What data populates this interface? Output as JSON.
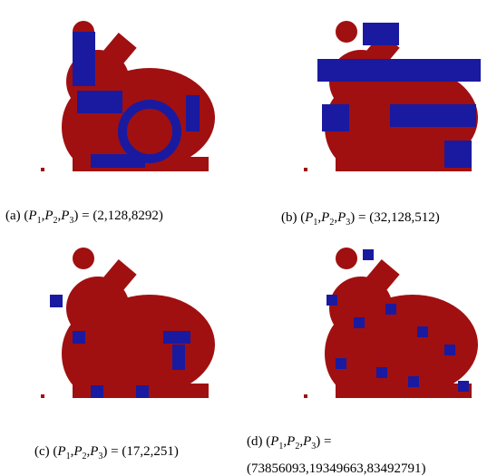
{
  "notation": {
    "open": "(",
    "symbol": "P",
    "subscripts": [
      "1",
      "2",
      "3"
    ],
    "separator": ",",
    "close": ")",
    "equals": "="
  },
  "panels": [
    {
      "label": "(a)",
      "values": "(2,128,8292)"
    },
    {
      "label": "(b)",
      "values": "(32,128,512)"
    },
    {
      "label": "(c)",
      "values": "(17,2,251)"
    },
    {
      "label": "(d)",
      "values": "(73856093,19349663,83492791)"
    }
  ]
}
